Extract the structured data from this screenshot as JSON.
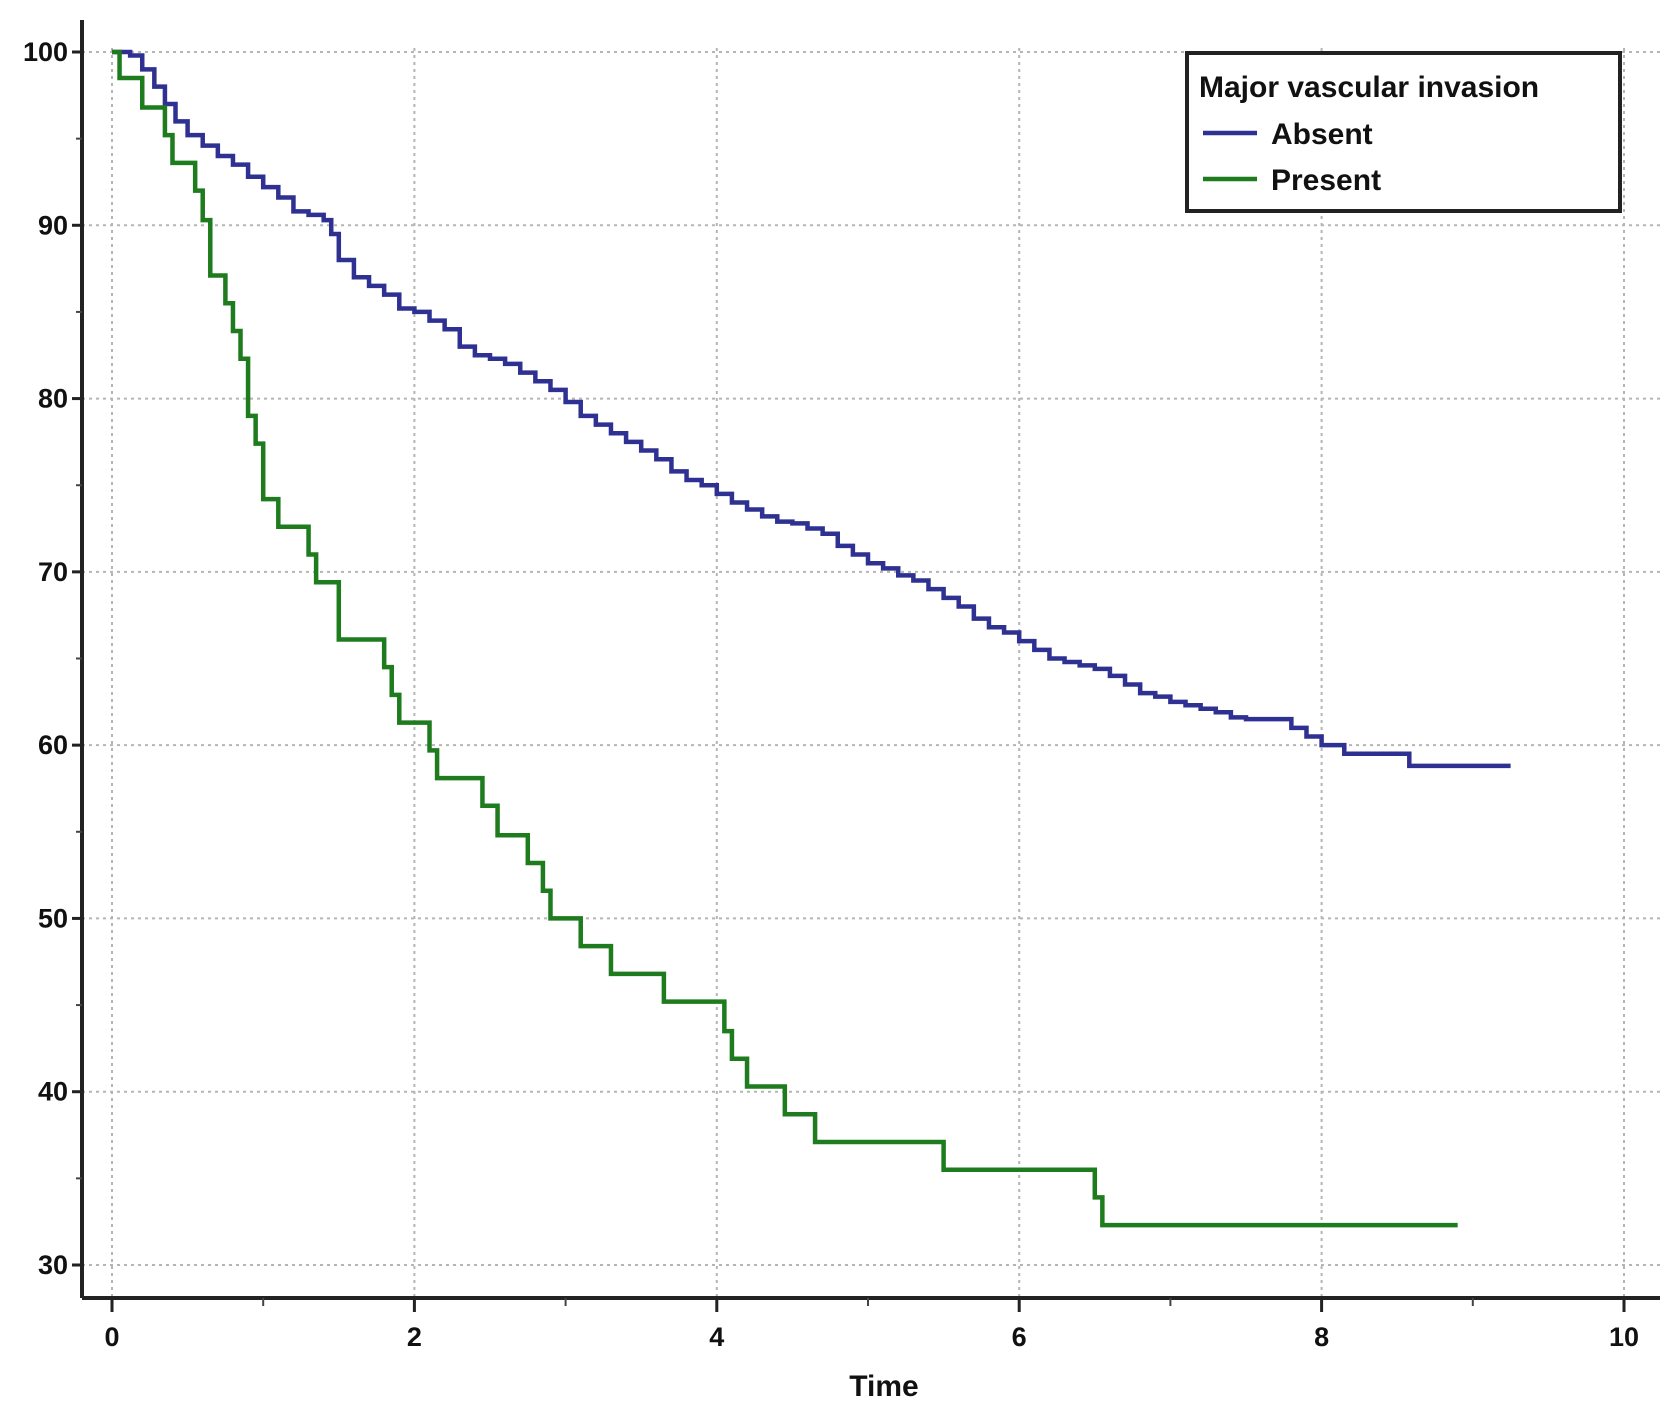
{
  "chart_data": {
    "type": "line",
    "step": true,
    "title": "",
    "xlabel": "Time",
    "ylabel": "",
    "xlim": [
      0,
      10
    ],
    "ylim": [
      30,
      100
    ],
    "xticks": [
      0,
      2,
      4,
      6,
      8,
      10
    ],
    "yticks": [
      30,
      40,
      50,
      60,
      70,
      80,
      90,
      100
    ],
    "grid": true,
    "legend": {
      "title": "Major vascular invasion",
      "placement": "top-right"
    },
    "series": [
      {
        "name": "Absent",
        "color": "#2e3192",
        "x": [
          0.05,
          0.12,
          0.2,
          0.28,
          0.35,
          0.42,
          0.5,
          0.6,
          0.7,
          0.8,
          0.9,
          1.0,
          1.1,
          1.2,
          1.3,
          1.4,
          1.45,
          1.5,
          1.6,
          1.7,
          1.8,
          1.9,
          2.0,
          2.1,
          2.2,
          2.3,
          2.4,
          2.5,
          2.6,
          2.7,
          2.8,
          2.9,
          3.0,
          3.1,
          3.2,
          3.3,
          3.4,
          3.5,
          3.6,
          3.7,
          3.8,
          3.9,
          4.0,
          4.1,
          4.2,
          4.3,
          4.4,
          4.5,
          4.6,
          4.7,
          4.8,
          4.9,
          5.0,
          5.1,
          5.2,
          5.3,
          5.4,
          5.5,
          5.6,
          5.7,
          5.8,
          5.9,
          6.0,
          6.1,
          6.2,
          6.3,
          6.4,
          6.5,
          6.6,
          6.7,
          6.8,
          6.9,
          7.0,
          7.1,
          7.2,
          7.3,
          7.4,
          7.5,
          7.6,
          7.7,
          7.8,
          7.9,
          8.0,
          8.15,
          8.3,
          8.45,
          8.58,
          8.75,
          9.0,
          9.25
        ],
        "y": [
          100,
          99.8,
          99.0,
          98.0,
          97.0,
          96.0,
          95.2,
          94.6,
          94.0,
          93.5,
          92.8,
          92.2,
          91.6,
          90.8,
          90.6,
          90.3,
          89.5,
          88.0,
          87.0,
          86.5,
          86.0,
          85.2,
          85.0,
          84.5,
          84.0,
          83.0,
          82.5,
          82.3,
          82.0,
          81.5,
          81.0,
          80.5,
          79.8,
          79.0,
          78.5,
          78.0,
          77.5,
          77.0,
          76.5,
          75.8,
          75.3,
          75.0,
          74.5,
          74.0,
          73.6,
          73.2,
          72.9,
          72.8,
          72.5,
          72.2,
          71.5,
          71.0,
          70.5,
          70.2,
          69.8,
          69.5,
          69.0,
          68.5,
          68.0,
          67.3,
          66.8,
          66.5,
          66.0,
          65.5,
          65.0,
          64.8,
          64.6,
          64.4,
          64.0,
          63.5,
          63.0,
          62.8,
          62.5,
          62.3,
          62.1,
          61.9,
          61.6,
          61.5,
          61.5,
          61.5,
          61.0,
          60.5,
          60.0,
          59.5,
          59.5,
          59.5,
          58.8,
          58.8,
          58.8,
          58.8
        ]
      },
      {
        "name": "Present",
        "color": "#1e7b1e",
        "x": [
          0.05,
          0.1,
          0.2,
          0.3,
          0.35,
          0.4,
          0.5,
          0.55,
          0.6,
          0.65,
          0.7,
          0.75,
          0.8,
          0.85,
          0.9,
          0.95,
          1.0,
          1.1,
          1.2,
          1.3,
          1.35,
          1.4,
          1.5,
          1.6,
          1.7,
          1.8,
          1.85,
          1.9,
          2.0,
          2.1,
          2.15,
          2.2,
          2.35,
          2.45,
          2.55,
          2.65,
          2.75,
          2.85,
          2.9,
          3.0,
          3.1,
          3.2,
          3.3,
          3.4,
          3.5,
          3.65,
          3.8,
          3.95,
          4.05,
          4.1,
          4.2,
          4.3,
          4.45,
          4.55,
          4.65,
          4.8,
          5.0,
          5.2,
          5.5,
          5.7,
          5.9,
          6.1,
          6.5,
          6.55,
          6.6,
          7.0,
          8.0,
          8.9
        ],
        "y": [
          98.5,
          98.5,
          96.8,
          96.8,
          95.2,
          93.6,
          93.6,
          92.0,
          90.3,
          87.1,
          87.1,
          85.5,
          83.9,
          82.3,
          79.0,
          77.4,
          74.2,
          72.6,
          72.6,
          71.0,
          69.4,
          69.4,
          66.1,
          66.1,
          66.1,
          64.5,
          62.9,
          61.3,
          61.3,
          59.7,
          58.1,
          58.1,
          58.1,
          56.5,
          54.8,
          54.8,
          53.2,
          51.6,
          50.0,
          50.0,
          48.4,
          48.4,
          46.8,
          46.8,
          46.8,
          45.2,
          45.2,
          45.2,
          43.5,
          41.9,
          40.3,
          40.3,
          38.7,
          38.7,
          37.1,
          37.1,
          37.1,
          37.1,
          35.5,
          35.5,
          35.5,
          35.5,
          33.9,
          32.3,
          32.3,
          32.3,
          32.3,
          32.3
        ]
      }
    ]
  }
}
